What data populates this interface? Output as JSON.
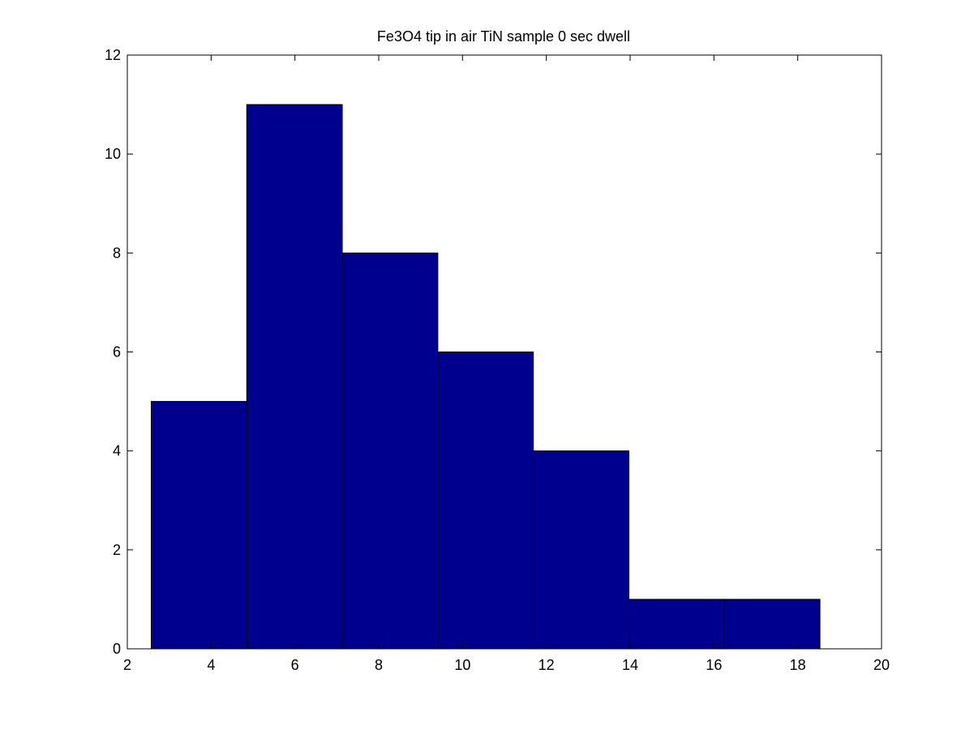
{
  "chart_data": {
    "type": "bar",
    "title": "Fe3O4 tip in air TiN sample 0 sec dwell",
    "xlabel": "",
    "ylabel": "",
    "xlim": [
      2,
      20
    ],
    "ylim": [
      0,
      12
    ],
    "xticks": [
      2,
      4,
      6,
      8,
      10,
      12,
      14,
      16,
      18,
      20
    ],
    "yticks": [
      0,
      2,
      4,
      6,
      8,
      10,
      12
    ],
    "bins": [
      {
        "start": 2.57,
        "end": 4.85,
        "count": 5
      },
      {
        "start": 4.85,
        "end": 7.13,
        "count": 11
      },
      {
        "start": 7.13,
        "end": 9.41,
        "count": 8
      },
      {
        "start": 9.41,
        "end": 11.69,
        "count": 6
      },
      {
        "start": 11.69,
        "end": 13.97,
        "count": 4
      },
      {
        "start": 13.97,
        "end": 16.25,
        "count": 1
      },
      {
        "start": 16.25,
        "end": 18.53,
        "count": 1
      }
    ],
    "grid": false,
    "legend": "none",
    "colors": {
      "bar_fill": "#00008f",
      "bar_edge": "#000000",
      "axes": "#000000",
      "background": "#ffffff"
    }
  }
}
